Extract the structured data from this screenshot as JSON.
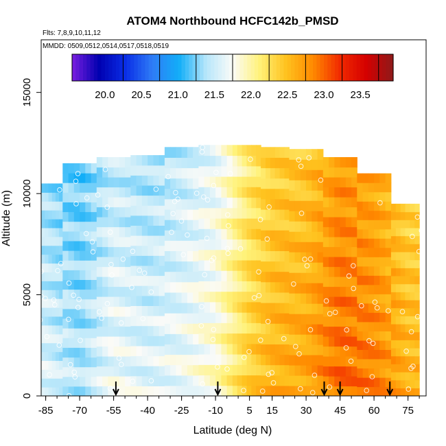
{
  "chart_data": {
    "type": "heatmap",
    "title": "ATOM4 Northbound HCFC142b_PMSD",
    "annotations": [
      "Flts: 7,8,9,10,11,12",
      "MMDD: 0509,0512,0514,0517,0518,0519"
    ],
    "xlabel": "Latitude (deg N)",
    "ylabel": "Altitude (m)",
    "xlim": [
      -87,
      83
    ],
    "ylim": [
      0,
      17600
    ],
    "x_ticks": [
      -85,
      -70,
      -55,
      -40,
      -25,
      -10,
      5,
      15,
      30,
      45,
      60,
      75
    ],
    "y_ticks": [
      0,
      5000,
      10000,
      15000
    ],
    "colorbar": {
      "range": [
        19.55,
        23.95
      ],
      "ticks": [
        20.0,
        20.5,
        21.0,
        21.5,
        22.0,
        22.5,
        23.0,
        23.5
      ],
      "colors": [
        "#7a1fe0",
        "#0000b0",
        "#0a2ee6",
        "#2f7cf6",
        "#12aef8",
        "#b6e6fa",
        "#fbfbf8",
        "#fff27a",
        "#ffc21e",
        "#ff8a00",
        "#f22a00",
        "#d40000",
        "#8e1a1a"
      ],
      "position": "top"
    },
    "profile_markers_lat": [
      -54,
      -9,
      38,
      45,
      67
    ],
    "field_cells": [
      {
        "lat": -85,
        "alt": [
          0,
          10500
        ],
        "value": 21.6
      },
      {
        "lat": -70,
        "alt": [
          0,
          11500
        ],
        "value": 21.4
      },
      {
        "lat": -55,
        "alt": [
          0,
          11800
        ],
        "value": 21.7
      },
      {
        "lat": -40,
        "alt": [
          0,
          11900
        ],
        "value": 21.6
      },
      {
        "lat": -25,
        "alt": [
          0,
          12300
        ],
        "value": 21.7
      },
      {
        "lat": -10,
        "alt": [
          0,
          12400
        ],
        "value": 21.9
      },
      {
        "lat": 5,
        "alt": [
          0,
          12400
        ],
        "value": 22.4
      },
      {
        "lat": 15,
        "alt": [
          0,
          12300
        ],
        "value": 22.6
      },
      {
        "lat": 30,
        "alt": [
          0,
          12200
        ],
        "value": 22.7
      },
      {
        "lat": 45,
        "alt": [
          0,
          11800
        ],
        "value": 23.0
      },
      {
        "lat": 60,
        "alt": [
          0,
          11000
        ],
        "value": 22.9
      },
      {
        "lat": 75,
        "alt": [
          0,
          9500
        ],
        "value": 22.6
      }
    ]
  }
}
